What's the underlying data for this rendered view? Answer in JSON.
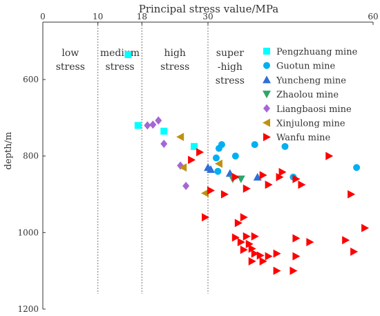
{
  "chart_data": {
    "type": "scatter",
    "title": "Principal stress value/MPa",
    "xlabel": "Principal stress value/MPa",
    "ylabel": "depth/m",
    "x_axis_position": "top",
    "y_axis_inverted": true,
    "xlim": [
      0,
      60
    ],
    "ylim": [
      1200,
      450
    ],
    "x_ticks": [
      "0",
      "10",
      "18",
      "30",
      "60"
    ],
    "y_ticks": [
      "600",
      "800",
      "1000",
      "1200"
    ],
    "zone_dividers": [
      10,
      18,
      30
    ],
    "zones": [
      {
        "lines": [
          "low",
          "stress"
        ],
        "x_center": 5
      },
      {
        "lines": [
          "medium",
          "stress"
        ],
        "x_center": 14
      },
      {
        "lines": [
          "high",
          "stress"
        ],
        "x_center": 24
      },
      {
        "lines": [
          "super",
          "-high",
          "stress"
        ],
        "x_center": 34
      }
    ],
    "legend_position": "top-right",
    "series": [
      {
        "name": "Pengzhuang mine",
        "color": "#00ffff",
        "marker": "square",
        "points": [
          [
            15.5,
            535
          ],
          [
            17.3,
            720
          ],
          [
            22.0,
            735
          ],
          [
            27.5,
            775
          ]
        ]
      },
      {
        "name": "Guotun mine",
        "color": "#00b0f0",
        "marker": "circle",
        "points": [
          [
            32.5,
            770
          ],
          [
            32.0,
            780
          ],
          [
            31.5,
            805
          ],
          [
            31.8,
            840
          ],
          [
            35.0,
            800
          ],
          [
            38.5,
            770
          ],
          [
            44.0,
            775
          ],
          [
            45.5,
            855
          ],
          [
            57.0,
            830
          ]
        ]
      },
      {
        "name": "Yuncheng mine",
        "color": "#2f6fd6",
        "marker": "triangle-up",
        "points": [
          [
            30.0,
            830
          ],
          [
            30.5,
            835
          ],
          [
            34.0,
            845
          ],
          [
            39.0,
            855
          ]
        ]
      },
      {
        "name": "Zhaolou mine",
        "color": "#2fa56d",
        "marker": "triangle-down",
        "points": [
          [
            34.5,
            860
          ],
          [
            36.0,
            860
          ]
        ]
      },
      {
        "name": "Liangbaosi mine",
        "color": "#a566d6",
        "marker": "diamond",
        "points": [
          [
            19.0,
            720
          ],
          [
            20.0,
            718
          ],
          [
            21.0,
            707
          ],
          [
            22.0,
            768
          ],
          [
            25.0,
            825
          ],
          [
            26.0,
            878
          ]
        ]
      },
      {
        "name": "Xinjulong mine",
        "color": "#c09010",
        "marker": "triangle-left",
        "points": [
          [
            25.0,
            750
          ],
          [
            25.5,
            830
          ],
          [
            29.5,
            897
          ],
          [
            32.0,
            820
          ]
        ]
      },
      {
        "name": "Wanfu mine",
        "color": "#ff0000",
        "marker": "triangle-right",
        "points": [
          [
            27.0,
            810
          ],
          [
            28.5,
            790
          ],
          [
            30.5,
            890
          ],
          [
            33.0,
            900
          ],
          [
            35.0,
            855
          ],
          [
            37.0,
            885
          ],
          [
            40.0,
            850
          ],
          [
            41.0,
            875
          ],
          [
            43.0,
            855
          ],
          [
            43.5,
            842
          ],
          [
            46.0,
            860
          ],
          [
            47.0,
            875
          ],
          [
            52.0,
            800
          ],
          [
            56.0,
            900
          ],
          [
            29.5,
            960
          ],
          [
            36.5,
            960
          ],
          [
            35.5,
            975
          ],
          [
            37.0,
            1010
          ],
          [
            38.5,
            1010
          ],
          [
            35.0,
            1013
          ],
          [
            36.0,
            1025
          ],
          [
            37.5,
            1030
          ],
          [
            36.5,
            1045
          ],
          [
            38.0,
            1042
          ],
          [
            38.5,
            1055
          ],
          [
            39.5,
            1060
          ],
          [
            41.0,
            1062
          ],
          [
            42.5,
            1055
          ],
          [
            38.0,
            1075
          ],
          [
            40.0,
            1075
          ],
          [
            42.5,
            1100
          ],
          [
            46.0,
            1062
          ],
          [
            46.0,
            1015
          ],
          [
            48.5,
            1025
          ],
          [
            45.5,
            1100
          ],
          [
            55.0,
            1020
          ],
          [
            56.5,
            1050
          ],
          [
            58.5,
            988
          ]
        ]
      }
    ]
  }
}
